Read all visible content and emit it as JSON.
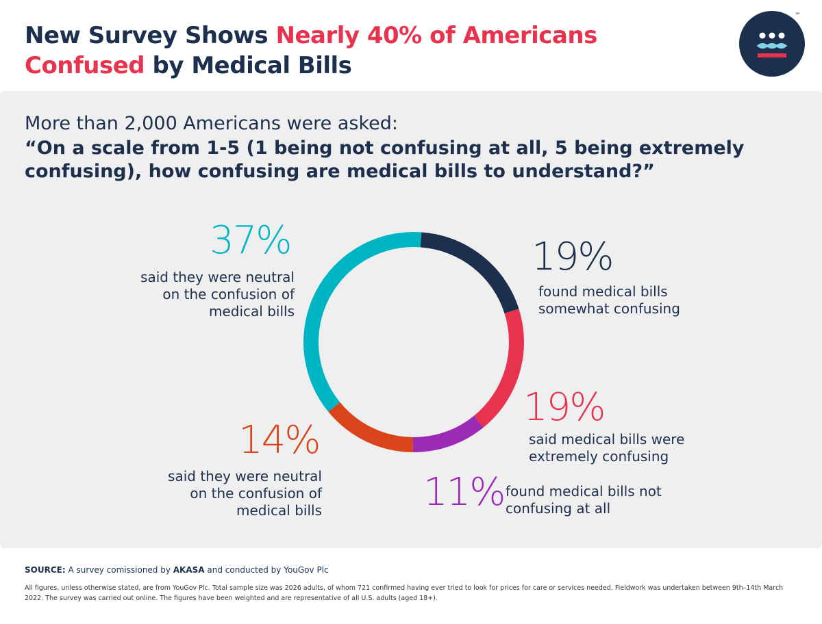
{
  "title": {
    "part1": "New Survey Shows ",
    "highlight1": "Nearly 40% of Americans",
    "highlight2": "Confused",
    "part2": " by Medical Bills"
  },
  "logo": {
    "tm": "™"
  },
  "question": {
    "intro": "More than 2,000 Americans were asked:",
    "text": "“On a scale from 1-5 (1 being not confusing at all, 5 being extremely confusing), how confusing are medical bills to understand?”"
  },
  "colors": {
    "navy": "#1c2f4d",
    "red": "#e8334f",
    "purple": "#9b2bb5",
    "orange": "#d9441a",
    "teal": "#00b5c3",
    "panel": "#efefef"
  },
  "chart_data": {
    "type": "pie",
    "donut": true,
    "start": "top, clockwise",
    "slices": [
      {
        "label": "19%",
        "value": 19,
        "color": "#1c2f4d"
      },
      {
        "label": "19%",
        "value": 19,
        "color": "#e8334f"
      },
      {
        "label": "11%",
        "value": 11,
        "color": "#9b2bb5"
      },
      {
        "label": "14%",
        "value": 14,
        "color": "#d9441a"
      },
      {
        "label": "37%",
        "value": 37,
        "color": "#00b5c3"
      }
    ]
  },
  "labels": {
    "teal": [
      "said they were neutral",
      "on the confusion of",
      "medical bills"
    ],
    "navy": [
      "found medical bills",
      "somewhat confusing"
    ],
    "red": [
      "said medical bills were",
      "extremely confusing"
    ],
    "orange": [
      "said they were neutral",
      "on the confusion of",
      "medical bills"
    ],
    "purple": [
      "found medical bills not",
      "confusing at all"
    ]
  },
  "source": {
    "label": "SOURCE:",
    "text1": " A survey comissioned by ",
    "brand": "AKASA",
    "text2": " and conducted by YouGov Plc"
  },
  "note": "All figures, unless otherwise stated, are from YouGov Plc. Total sample size was 2026 adults, of whom 721 confirmed having ever tried to look for prices for care or services needed. Fieldwork was undertaken between 9th–14th March 2022. The survey was carried out online. The figures have been weighted and are representative of all U.S. adults (aged 18+)."
}
